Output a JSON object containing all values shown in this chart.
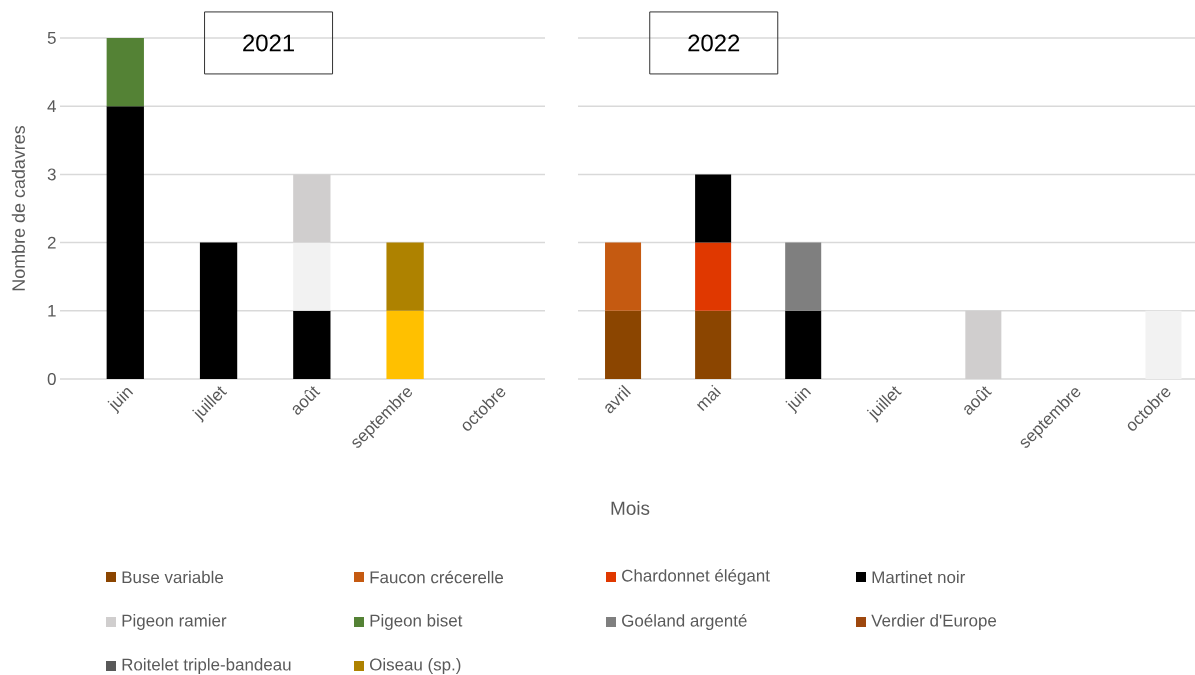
{
  "chart_data": [
    {
      "type": "bar",
      "stacked": true,
      "title": "2021",
      "xlabel": "Mois",
      "ylabel": "Nombre de cadavres",
      "categories": [
        "juin",
        "juillet",
        "août",
        "septembre",
        "octobre"
      ],
      "ylim": [
        0,
        5
      ],
      "yticks": [
        0,
        1,
        2,
        3,
        4,
        5
      ],
      "grid": "y",
      "legend": "bottom",
      "series": [
        {
          "name": "Buse variable",
          "color": "#8b4500",
          "values": [
            null,
            null,
            null,
            null,
            null
          ]
        },
        {
          "name": "Faucon crécerelle",
          "color": "#c55a11",
          "values": [
            null,
            null,
            null,
            null,
            null
          ]
        },
        {
          "name": "Chardonnet élégant",
          "color": "#e03800",
          "values": [
            null,
            null,
            null,
            null,
            null
          ]
        },
        {
          "name": "Martinet noir",
          "color": "#000000",
          "values": [
            4,
            2,
            1,
            null,
            null
          ]
        },
        {
          "color": "#f2f2f2",
          "values": [
            null,
            null,
            1,
            null,
            null
          ]
        },
        {
          "name": "Pigeon ramier",
          "color": "#d0cece",
          "values": [
            null,
            null,
            1,
            null,
            null
          ]
        },
        {
          "name": "Pigeon biset",
          "color": "#548235",
          "values": [
            1,
            null,
            null,
            null,
            null
          ]
        },
        {
          "name": "Goéland argenté",
          "color": "#7f7f7f",
          "values": [
            null,
            null,
            null,
            null,
            null
          ]
        },
        {
          "name": "Verdier d'Europe",
          "color": "#9e480e",
          "values": [
            null,
            null,
            null,
            null,
            null
          ]
        },
        {
          "name": "Roitelet triple-bandeau",
          "color": "#595959",
          "values": [
            null,
            null,
            null,
            null,
            null
          ]
        },
        {
          "color": "#ffc000",
          "values": [
            null,
            null,
            null,
            1,
            null
          ]
        },
        {
          "name": "Oiseau (sp.)",
          "color": "#ae8200",
          "values": [
            null,
            null,
            null,
            1,
            null
          ]
        }
      ]
    },
    {
      "type": "bar",
      "stacked": true,
      "title": "2022",
      "categories": [
        "avril",
        "mai",
        "juin",
        "juillet",
        "août",
        "septembre",
        "octobre"
      ],
      "ylim": [
        0,
        5
      ],
      "yticks": [
        0,
        1,
        2,
        3,
        4,
        5
      ],
      "grid": "y",
      "tick_labels": "x",
      "series": [
        {
          "color": "#8b4500",
          "values": [
            1,
            1,
            null,
            null,
            null,
            null,
            null
          ]
        },
        {
          "color": "#c55a11",
          "values": [
            1,
            null,
            null,
            null,
            null,
            null,
            null
          ]
        },
        {
          "color": "#e03800",
          "values": [
            null,
            1,
            null,
            null,
            null,
            null,
            null
          ]
        },
        {
          "color": "#000000",
          "values": [
            null,
            1,
            1,
            null,
            null,
            null,
            null
          ]
        },
        {
          "color": "#f2f2f2",
          "values": [
            null,
            null,
            null,
            null,
            null,
            null,
            1
          ]
        },
        {
          "color": "#d0cece",
          "values": [
            null,
            null,
            null,
            null,
            1,
            null,
            null
          ]
        },
        {
          "color": "#7f7f7f",
          "values": [
            null,
            null,
            1,
            null,
            null,
            null,
            null
          ]
        }
      ]
    }
  ]
}
